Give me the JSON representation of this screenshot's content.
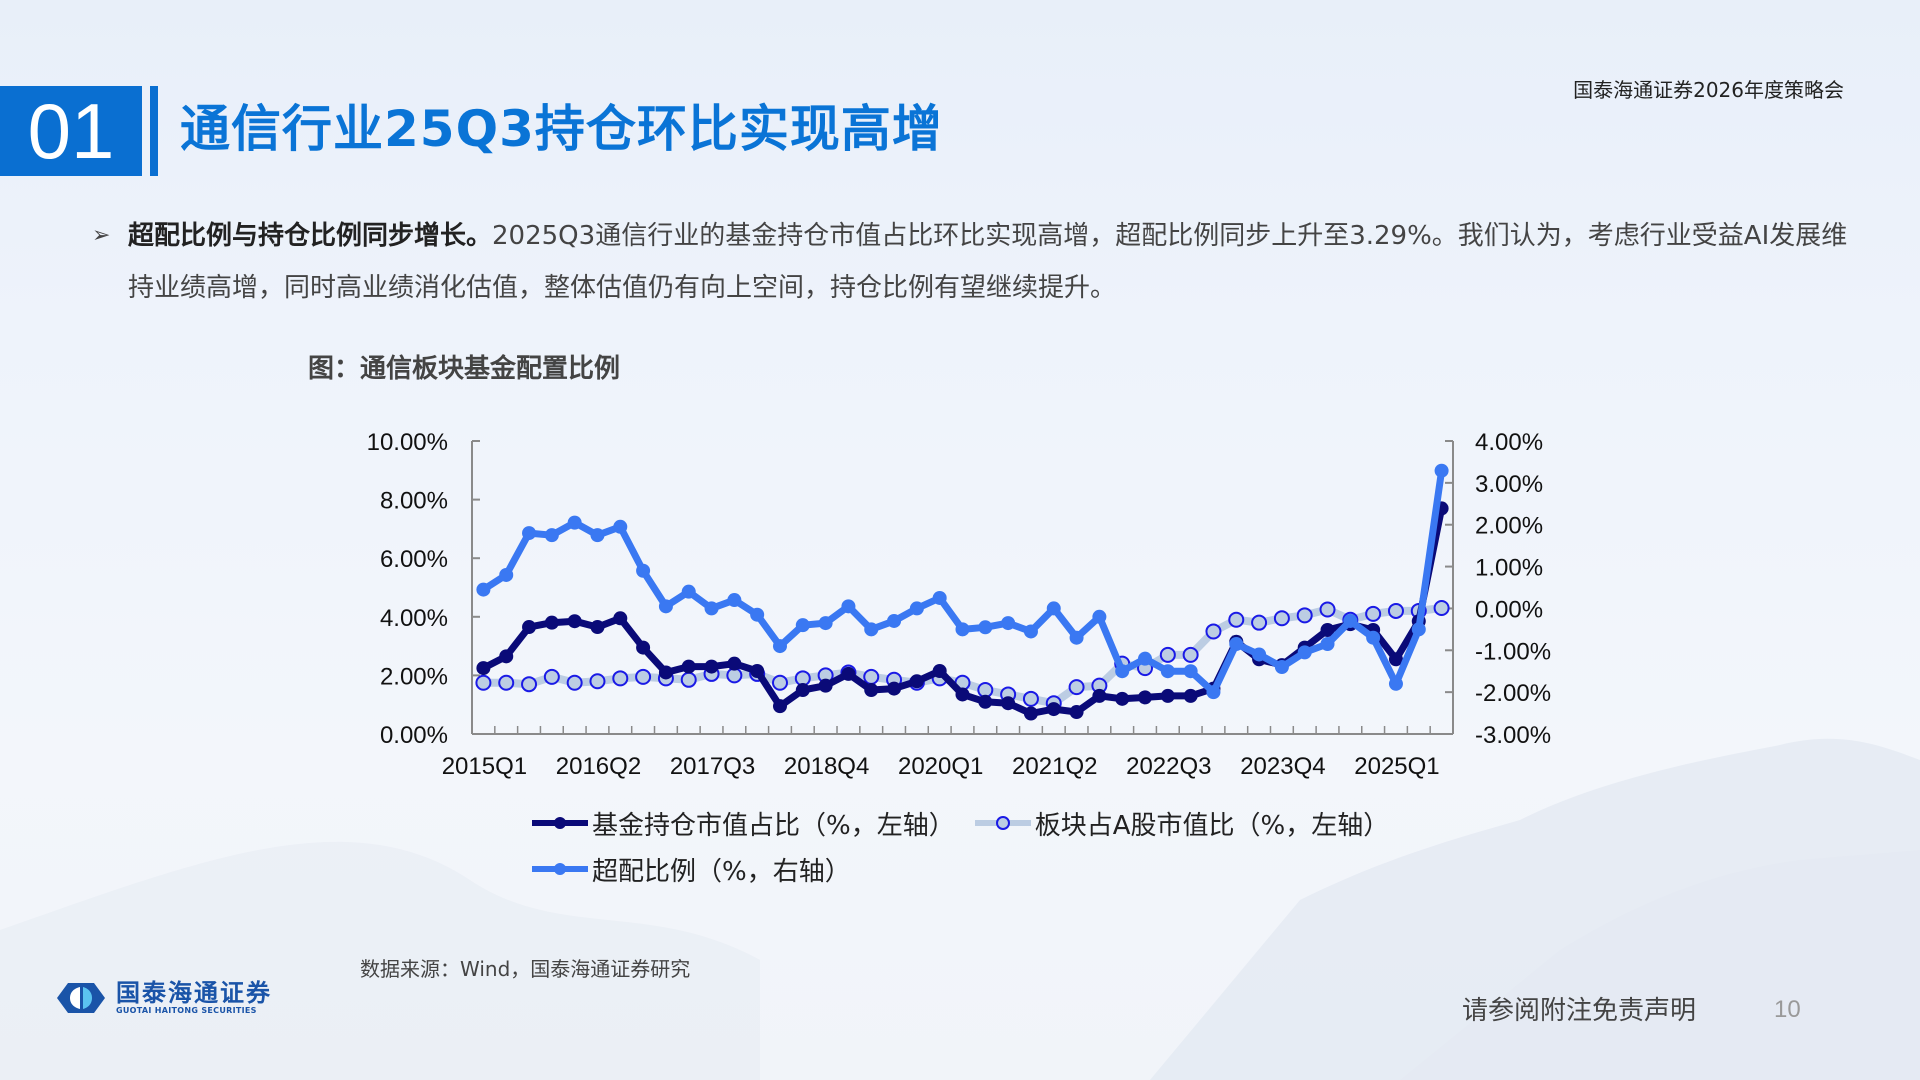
{
  "header": {
    "section_number": "01",
    "title": "通信行业25Q3持仓环比实现高增",
    "event_name": "国泰海通证券2026年度策略会"
  },
  "bullet": {
    "bold_lead": "超配比例与持仓比例同步增长。",
    "body": "2025Q3通信行业的基金持仓市值占比环比实现高增，超配比例同步上升至3.29%。我们认为，考虑行业受益AI发展维持业绩高增，同时高业绩消化估值，整体估值仍有向上空间，持仓比例有望继续提升。"
  },
  "chart_title": "图：通信板块基金配置比例",
  "colors": {
    "accent": "#0a6fd1",
    "fund_holding": "#0a0a78",
    "sector_share_line": "#bccde3",
    "sector_share_marker_edge": "#1a1ae6",
    "overweight": "#3a78f2"
  },
  "chart_data": {
    "type": "line",
    "title": "通信板块基金配置比例",
    "xlabel": "",
    "ylabel_left": "%",
    "ylabel_right": "%",
    "ylim_left": [
      0,
      10
    ],
    "ylim_right": [
      -3,
      4
    ],
    "yticks_left": [
      "0.00%",
      "2.00%",
      "4.00%",
      "6.00%",
      "8.00%",
      "10.00%"
    ],
    "yticks_right": [
      "-3.00%",
      "-2.00%",
      "-1.00%",
      "0.00%",
      "1.00%",
      "2.00%",
      "3.00%",
      "4.00%"
    ],
    "xtick_labels": [
      "2015Q1",
      "2016Q2",
      "2017Q3",
      "2018Q4",
      "2020Q1",
      "2021Q2",
      "2022Q3",
      "2023Q4",
      "2025Q1"
    ],
    "grid": false,
    "legend_position": "bottom",
    "x": [
      "2015Q1",
      "2015Q2",
      "2015Q3",
      "2015Q4",
      "2016Q1",
      "2016Q2",
      "2016Q3",
      "2016Q4",
      "2017Q1",
      "2017Q2",
      "2017Q3",
      "2017Q4",
      "2018Q1",
      "2018Q2",
      "2018Q3",
      "2018Q4",
      "2019Q1",
      "2019Q2",
      "2019Q3",
      "2019Q4",
      "2020Q1",
      "2020Q2",
      "2020Q3",
      "2020Q4",
      "2021Q1",
      "2021Q2",
      "2021Q3",
      "2021Q4",
      "2022Q1",
      "2022Q2",
      "2022Q3",
      "2022Q4",
      "2023Q1",
      "2023Q2",
      "2023Q3",
      "2023Q4",
      "2024Q1",
      "2024Q2",
      "2024Q3",
      "2024Q4",
      "2025Q1",
      "2025Q2",
      "2025Q3"
    ],
    "series": [
      {
        "name": "基金持仓市值占比（%，左轴）",
        "axis": "left",
        "values": [
          2.25,
          2.65,
          3.65,
          3.8,
          3.85,
          3.65,
          3.95,
          2.95,
          2.1,
          2.3,
          2.3,
          2.4,
          2.15,
          0.95,
          1.5,
          1.65,
          2.05,
          1.5,
          1.55,
          1.8,
          2.15,
          1.35,
          1.1,
          1.05,
          0.7,
          0.85,
          0.75,
          1.3,
          1.2,
          1.25,
          1.3,
          1.3,
          1.55,
          3.15,
          2.55,
          2.35,
          2.95,
          3.55,
          3.75,
          3.55,
          2.55,
          3.85,
          7.7
        ]
      },
      {
        "name": "板块占A股市值比（%，左轴）",
        "axis": "left",
        "values": [
          1.75,
          1.75,
          1.7,
          1.95,
          1.75,
          1.8,
          1.9,
          1.95,
          1.9,
          1.85,
          2.05,
          2.0,
          2.05,
          1.75,
          1.9,
          2.0,
          2.1,
          1.95,
          1.85,
          1.75,
          1.9,
          1.75,
          1.5,
          1.35,
          1.2,
          1.05,
          1.6,
          1.65,
          2.4,
          2.25,
          2.7,
          2.7,
          3.5,
          3.9,
          3.8,
          3.95,
          4.05,
          4.25,
          3.9,
          4.1,
          4.2,
          4.2,
          4.3
        ]
      },
      {
        "name": "超配比例（%，右轴）",
        "axis": "right",
        "values": [
          0.45,
          0.8,
          1.8,
          1.75,
          2.05,
          1.75,
          1.95,
          0.9,
          0.05,
          0.4,
          0.0,
          0.2,
          -0.15,
          -0.9,
          -0.4,
          -0.35,
          0.05,
          -0.5,
          -0.3,
          0.0,
          0.25,
          -0.5,
          -0.45,
          -0.35,
          -0.55,
          0.0,
          -0.7,
          -0.2,
          -1.5,
          -1.2,
          -1.5,
          -1.5,
          -2.0,
          -0.85,
          -1.1,
          -1.4,
          -1.05,
          -0.85,
          -0.3,
          -0.7,
          -1.8,
          -0.5,
          3.29
        ]
      }
    ]
  },
  "legend": {
    "items": [
      {
        "label": "基金持仓市值占比（%，左轴）"
      },
      {
        "label": "板块占A股市值比（%，左轴）"
      },
      {
        "label": "超配比例（%，右轴）"
      }
    ]
  },
  "source": "数据来源：Wind，国泰海通证券研究",
  "logo": {
    "name_cn": "国泰海通证券",
    "name_en": "GUOTAI HAITONG SECURITIES"
  },
  "footer": {
    "disclaimer": "请参阅附注免责声明",
    "page_number": "10"
  }
}
